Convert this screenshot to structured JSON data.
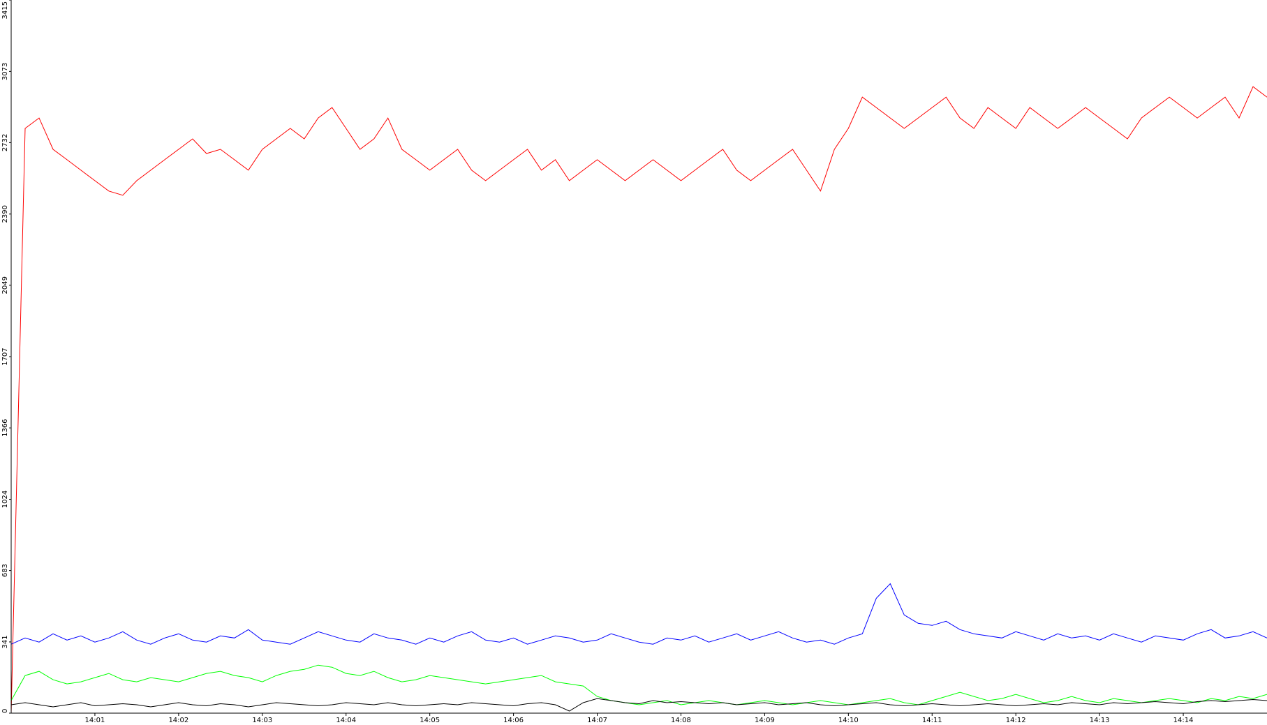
{
  "chart_data": {
    "type": "line",
    "ylim": [
      0,
      3415
    ],
    "yticks": [
      0,
      341,
      683,
      1024,
      1366,
      1707,
      2049,
      2390,
      2732,
      3073,
      3415
    ],
    "xticks": [
      "14:01",
      "14:02",
      "14:03",
      "14:04",
      "14:05",
      "14:06",
      "14:07",
      "14:08",
      "14:09",
      "14:10",
      "14:11",
      "14:12",
      "14:13",
      "14:14"
    ],
    "series": [
      {
        "color": "#ff0000",
        "values": [
          0,
          2800,
          2850,
          2700,
          2650,
          2600,
          2550,
          2500,
          2480,
          2550,
          2600,
          2650,
          2700,
          2750,
          2680,
          2700,
          2650,
          2600,
          2700,
          2750,
          2800,
          2750,
          2850,
          2900,
          2800,
          2700,
          2750,
          2850,
          2700,
          2650,
          2600,
          2650,
          2700,
          2600,
          2550,
          2600,
          2650,
          2700,
          2600,
          2650,
          2550,
          2600,
          2650,
          2600,
          2550,
          2600,
          2650,
          2600,
          2550,
          2600,
          2650,
          2700,
          2600,
          2550,
          2600,
          2650,
          2700,
          2600,
          2500,
          2700,
          2800,
          2950,
          2900,
          2850,
          2800,
          2850,
          2900,
          2950,
          2850,
          2800,
          2900,
          2850,
          2800,
          2900,
          2850,
          2800,
          2850,
          2900,
          2850,
          2800,
          2750,
          2850,
          2900,
          2950,
          2900,
          2850,
          2900,
          2950,
          2850,
          3000,
          2950
        ]
      },
      {
        "color": "#0000ff",
        "values": [
          330,
          360,
          340,
          380,
          350,
          370,
          340,
          360,
          390,
          350,
          330,
          360,
          380,
          350,
          340,
          370,
          360,
          400,
          350,
          340,
          330,
          360,
          390,
          370,
          350,
          340,
          380,
          360,
          350,
          330,
          360,
          340,
          370,
          390,
          350,
          340,
          360,
          330,
          350,
          370,
          360,
          340,
          350,
          380,
          360,
          340,
          330,
          360,
          350,
          370,
          340,
          360,
          380,
          350,
          370,
          390,
          360,
          340,
          350,
          330,
          360,
          380,
          550,
          620,
          470,
          430,
          420,
          440,
          400,
          380,
          370,
          360,
          390,
          370,
          350,
          380,
          360,
          370,
          350,
          380,
          360,
          340,
          370,
          360,
          350,
          380,
          400,
          360,
          370,
          390,
          360
        ]
      },
      {
        "color": "#00ff00",
        "values": [
          60,
          180,
          200,
          160,
          140,
          150,
          170,
          190,
          160,
          150,
          170,
          160,
          150,
          170,
          190,
          200,
          180,
          170,
          150,
          180,
          200,
          210,
          230,
          220,
          190,
          180,
          200,
          170,
          150,
          160,
          180,
          170,
          160,
          150,
          140,
          150,
          160,
          170,
          180,
          150,
          140,
          130,
          80,
          60,
          50,
          40,
          50,
          60,
          40,
          50,
          60,
          50,
          40,
          50,
          60,
          50,
          40,
          50,
          60,
          50,
          40,
          50,
          60,
          70,
          50,
          40,
          60,
          80,
          100,
          80,
          60,
          70,
          90,
          70,
          50,
          60,
          80,
          60,
          50,
          70,
          60,
          50,
          60,
          70,
          60,
          50,
          70,
          60,
          80,
          70,
          90
        ]
      },
      {
        "color": "#000000",
        "values": [
          40,
          50,
          40,
          30,
          40,
          50,
          35,
          40,
          45,
          40,
          30,
          40,
          50,
          40,
          35,
          45,
          40,
          30,
          40,
          50,
          45,
          40,
          35,
          40,
          50,
          45,
          40,
          50,
          40,
          35,
          40,
          45,
          40,
          50,
          45,
          40,
          35,
          45,
          50,
          40,
          10,
          50,
          70,
          60,
          50,
          45,
          60,
          50,
          55,
          50,
          45,
          50,
          40,
          45,
          50,
          40,
          45,
          50,
          40,
          35,
          40,
          45,
          50,
          40,
          35,
          40,
          45,
          40,
          35,
          40,
          45,
          40,
          35,
          40,
          45,
          40,
          50,
          45,
          40,
          50,
          45,
          50,
          55,
          50,
          45,
          55,
          60,
          55,
          60,
          65,
          60
        ]
      }
    ]
  }
}
